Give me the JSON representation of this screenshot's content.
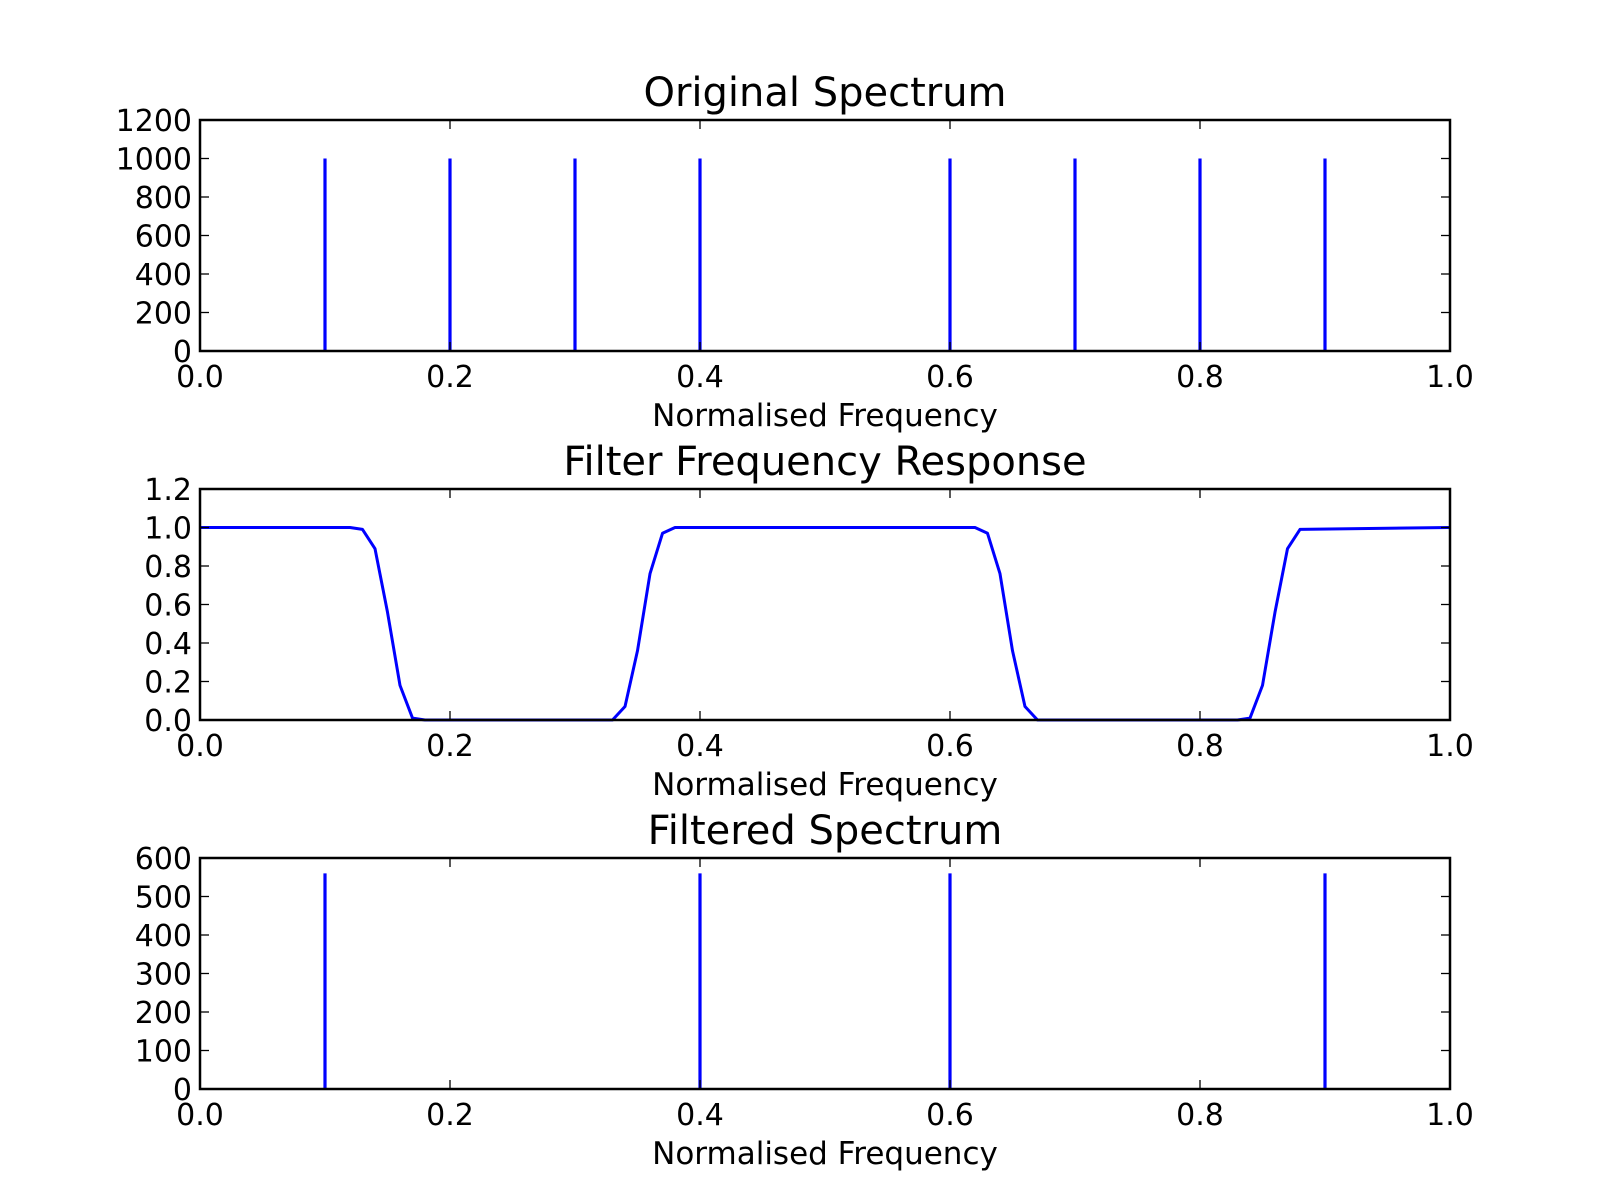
{
  "figure": {
    "background": "#ffffff",
    "line_color": "#0000ff"
  },
  "chart_data": [
    {
      "type": "line",
      "title": "Original Spectrum",
      "xlabel": "Normalised Frequency",
      "ylabel": "",
      "xlim": [
        0.0,
        1.0
      ],
      "ylim": [
        0,
        1200
      ],
      "xticks": [
        0.0,
        0.2,
        0.4,
        0.6,
        0.8,
        1.0
      ],
      "xtick_labels": [
        "0.0",
        "0.2",
        "0.4",
        "0.6",
        "0.8",
        "1.0"
      ],
      "yticks": [
        0,
        200,
        400,
        600,
        800,
        1000,
        1200
      ],
      "ytick_labels": [
        "0",
        "200",
        "400",
        "600",
        "800",
        "1000",
        "1200"
      ],
      "grid": false,
      "series": [
        {
          "color": "#0000ff",
          "kind": "spikes",
          "x": [
            0.1,
            0.2,
            0.3,
            0.4,
            0.6,
            0.7,
            0.8,
            0.9
          ],
          "y": [
            1000,
            1000,
            1000,
            1000,
            1000,
            1000,
            1000,
            1000
          ]
        }
      ]
    },
    {
      "type": "line",
      "title": "Filter Frequency Response",
      "xlabel": "Normalised Frequency",
      "ylabel": "",
      "xlim": [
        0.0,
        1.0
      ],
      "ylim": [
        0.0,
        1.2
      ],
      "xticks": [
        0.0,
        0.2,
        0.4,
        0.6,
        0.8,
        1.0
      ],
      "xtick_labels": [
        "0.0",
        "0.2",
        "0.4",
        "0.6",
        "0.8",
        "1.0"
      ],
      "yticks": [
        0.0,
        0.2,
        0.4,
        0.6,
        0.8,
        1.0,
        1.2
      ],
      "ytick_labels": [
        "0.0",
        "0.2",
        "0.4",
        "0.6",
        "0.8",
        "1.0",
        "1.2"
      ],
      "grid": false,
      "series": [
        {
          "color": "#0000ff",
          "kind": "line",
          "x": [
            0.0,
            0.12,
            0.13,
            0.14,
            0.15,
            0.16,
            0.17,
            0.18,
            0.33,
            0.34,
            0.35,
            0.36,
            0.37,
            0.38,
            0.62,
            0.63,
            0.64,
            0.65,
            0.66,
            0.67,
            0.83,
            0.84,
            0.85,
            0.86,
            0.87,
            0.88,
            1.0
          ],
          "y": [
            1.0,
            1.0,
            0.99,
            0.89,
            0.56,
            0.18,
            0.01,
            0.0,
            0.0,
            0.07,
            0.36,
            0.76,
            0.97,
            1.0,
            1.0,
            0.97,
            0.76,
            0.36,
            0.07,
            0.0,
            0.0,
            0.01,
            0.18,
            0.56,
            0.89,
            0.99,
            1.0
          ]
        }
      ]
    },
    {
      "type": "line",
      "title": "Filtered Spectrum",
      "xlabel": "Normalised Frequency",
      "ylabel": "",
      "xlim": [
        0.0,
        1.0
      ],
      "ylim": [
        0,
        600
      ],
      "xticks": [
        0.0,
        0.2,
        0.4,
        0.6,
        0.8,
        1.0
      ],
      "xtick_labels": [
        "0.0",
        "0.2",
        "0.4",
        "0.6",
        "0.8",
        "1.0"
      ],
      "yticks": [
        0,
        100,
        200,
        300,
        400,
        500,
        600
      ],
      "ytick_labels": [
        "0",
        "100",
        "200",
        "300",
        "400",
        "500",
        "600"
      ],
      "grid": false,
      "series": [
        {
          "color": "#0000ff",
          "kind": "spikes",
          "x": [
            0.1,
            0.4,
            0.6,
            0.9
          ],
          "y": [
            560,
            560,
            560,
            560
          ]
        }
      ]
    }
  ]
}
